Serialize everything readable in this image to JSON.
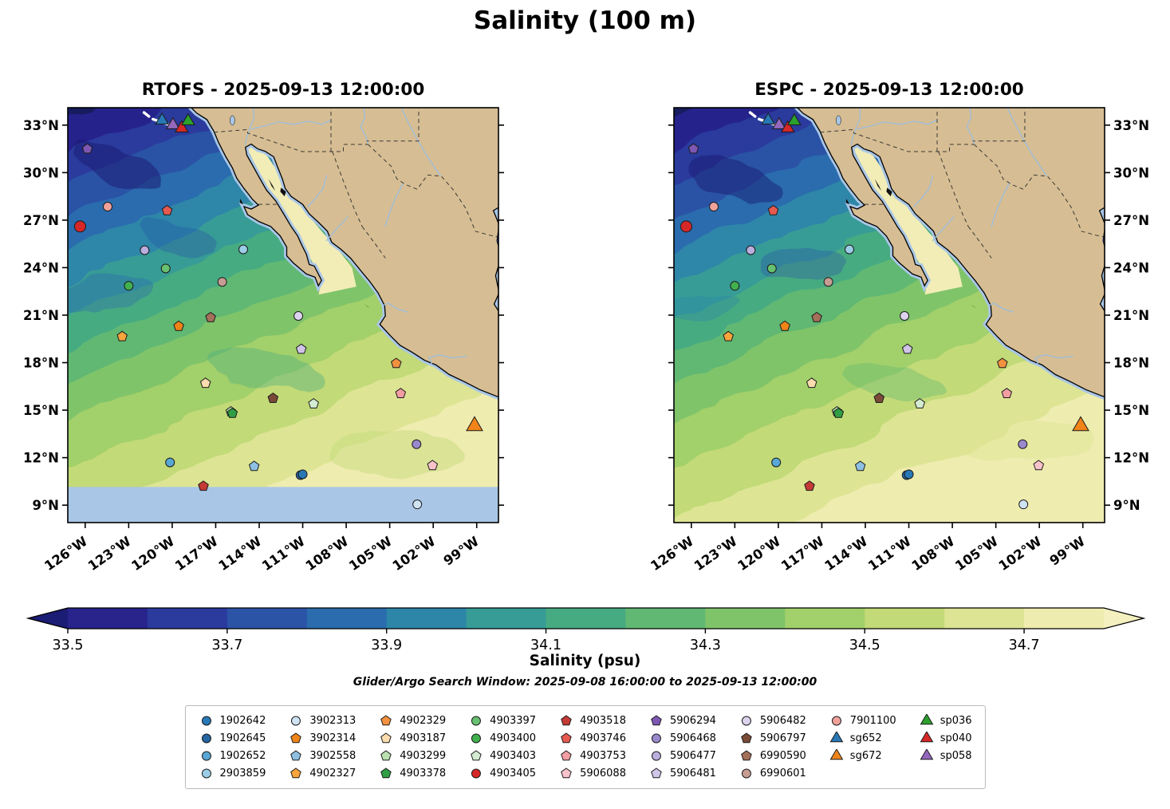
{
  "title": "Salinity (100 m)",
  "subtitle": "Glider/Argo Search Window: 2025-09-08 16:00:00 to 2025-09-13 12:00:00",
  "panels": [
    {
      "model": "RTOFS",
      "title": "RTOFS - 2025-09-13 12:00:00",
      "timestamp": "2025-09-13 12:00:00",
      "has_south_boundary_band": true,
      "turbulence_seed": 3
    },
    {
      "model": "ESPC",
      "title": "ESPC - 2025-09-13 12:00:00",
      "timestamp": "2025-09-13 12:00:00",
      "has_south_boundary_band": false,
      "turbulence_seed": 11
    }
  ],
  "axes": {
    "lat_ticks": [
      9,
      12,
      15,
      18,
      21,
      24,
      27,
      30,
      33
    ],
    "lat_labels": [
      "9°N",
      "12°N",
      "15°N",
      "18°N",
      "21°N",
      "24°N",
      "27°N",
      "30°N",
      "33°N"
    ],
    "lon_ticks": [
      -126,
      -123,
      -120,
      -117,
      -114,
      -111,
      -108,
      -105,
      -102,
      -99
    ],
    "lon_labels": [
      "126°W",
      "123°W",
      "120°W",
      "117°W",
      "114°W",
      "111°W",
      "108°W",
      "105°W",
      "102°W",
      "99°W"
    ]
  },
  "colorbar": {
    "label": "Salinity (psu)",
    "units": "psu",
    "ticks": [
      33.5,
      33.7,
      33.9,
      34.1,
      34.3,
      34.5,
      34.7
    ],
    "tick_labels": [
      "33.5",
      "33.7",
      "33.9",
      "34.1",
      "34.3",
      "34.5",
      "34.7"
    ],
    "vmin": 33.5,
    "vmax": 34.8,
    "segment_step": 0.1,
    "under_color": "#1b1c74",
    "over_color": "#f4f0bf",
    "segment_colors": [
      "#28248c",
      "#2b3a9d",
      "#2b53a6",
      "#2a6cae",
      "#2d86a8",
      "#379c96",
      "#47ab82",
      "#61b873",
      "#80c46a",
      "#a2d06a",
      "#c2da77",
      "#dde594",
      "#efecb0"
    ]
  },
  "basemap_colors": {
    "land": "#d6bd93",
    "coastline": "#000000",
    "no_data_shelf": "#a9c6e6",
    "gulf_of_california_water": "#f2edb6",
    "river": "#9dbede",
    "darkest_ocean": "#141a5e"
  },
  "legend": {
    "columns": [
      [
        {
          "id": "1902642",
          "shape": "circle",
          "color": "#2878b5"
        },
        {
          "id": "1902645",
          "shape": "circle",
          "color": "#2565a0"
        },
        {
          "id": "1902652",
          "shape": "circle",
          "color": "#58a7d4"
        },
        {
          "id": "2903859",
          "shape": "circle",
          "color": "#9ccde6"
        }
      ],
      [
        {
          "id": "3902313",
          "shape": "circle",
          "color": "#cfe3f2"
        },
        {
          "id": "3902314",
          "shape": "pentagon",
          "color": "#f08418"
        },
        {
          "id": "3902558",
          "shape": "pentagon",
          "color": "#8ec0e2"
        },
        {
          "id": "4902327",
          "shape": "pentagon",
          "color": "#faa43c"
        }
      ],
      [
        {
          "id": "4902329",
          "shape": "pentagon",
          "color": "#f29140"
        },
        {
          "id": "4903187",
          "shape": "pentagon",
          "color": "#fbdcae"
        },
        {
          "id": "4903299",
          "shape": "pentagon",
          "color": "#b9e0ae"
        },
        {
          "id": "4903378",
          "shape": "pentagon",
          "color": "#2f9e44"
        }
      ],
      [
        {
          "id": "4903397",
          "shape": "circle",
          "color": "#67c06f"
        },
        {
          "id": "4903400",
          "shape": "circle",
          "color": "#41b14e"
        },
        {
          "id": "4903403",
          "shape": "pentagon",
          "color": "#d4ecd2"
        },
        {
          "id": "4903405",
          "shape": "circle",
          "color": "#d62728"
        }
      ],
      [
        {
          "id": "4903518",
          "shape": "pentagon",
          "color": "#c43a35"
        },
        {
          "id": "4903746",
          "shape": "pentagon",
          "color": "#e65a50"
        },
        {
          "id": "4903753",
          "shape": "pentagon",
          "color": "#f29da2"
        },
        {
          "id": "5906088",
          "shape": "pentagon",
          "color": "#f8c3cb"
        }
      ],
      [
        {
          "id": "5906294",
          "shape": "pentagon",
          "color": "#7e57b2"
        },
        {
          "id": "5906468",
          "shape": "circle",
          "color": "#9a89cc"
        },
        {
          "id": "5906477",
          "shape": "circle",
          "color": "#b9aedd"
        },
        {
          "id": "5906481",
          "shape": "pentagon",
          "color": "#d0c5e8"
        }
      ],
      [
        {
          "id": "5906482",
          "shape": "circle",
          "color": "#ddd3ee"
        },
        {
          "id": "5906797",
          "shape": "pentagon",
          "color": "#7a4a38"
        },
        {
          "id": "6990590",
          "shape": "pentagon",
          "color": "#a4705a"
        },
        {
          "id": "6990601",
          "shape": "circle",
          "color": "#c79c92"
        }
      ],
      [
        {
          "id": "7901100",
          "shape": "circle",
          "color": "#f0a29a"
        },
        {
          "id": "sg652",
          "shape": "triangle",
          "color": "#2878b5"
        },
        {
          "id": "sg672",
          "shape": "triangle",
          "color": "#f08418"
        }
      ],
      [
        {
          "id": "sp036",
          "shape": "triangle",
          "color": "#2ca02c"
        },
        {
          "id": "sp040",
          "shape": "triangle",
          "color": "#d62728"
        },
        {
          "id": "sp058",
          "shape": "triangle",
          "color": "#9467bd"
        }
      ]
    ]
  },
  "chart_data": {
    "type": "heatmap",
    "title": "Salinity (100 m)",
    "variable": "Salinity",
    "units": "psu",
    "depth_m": 100,
    "panels": [
      {
        "model": "RTOFS",
        "timestamp": "2025-09-13 12:00:00"
      },
      {
        "model": "ESPC",
        "timestamp": "2025-09-13 12:00:00"
      }
    ],
    "lon_range_degW": [
      127.2,
      97.5
    ],
    "lat_range_degN": [
      7.9,
      34.1
    ],
    "value_range_psu": [
      33.5,
      34.8
    ],
    "spatial_pattern": "lowest salinity (<33.5 psu, dark indigo) in the northwest offshore California; values increase southeastward to >34.7 psu (pale yellow) near the southern Mexican coast and inside the Gulf of California",
    "glider_track": {
      "name": "glider-track",
      "color": "#ffffff",
      "points": [
        [
          -121.95,
          33.8
        ],
        [
          -121.4,
          33.4
        ],
        [
          -120.8,
          33.2
        ],
        [
          -120.2,
          33.02
        ]
      ]
    },
    "platforms": [
      {
        "id": "5906294",
        "lon": -125.85,
        "lat": 31.5
      },
      {
        "id": "7901100",
        "lon": -124.45,
        "lat": 27.85
      },
      {
        "id": "4903746",
        "lon": -120.35,
        "lat": 27.6
      },
      {
        "id": "4903405",
        "lon": -126.35,
        "lat": 26.6,
        "size": 7
      },
      {
        "id": "5906477",
        "lon": -121.9,
        "lat": 25.1
      },
      {
        "id": "2903859",
        "lon": -115.1,
        "lat": 25.15
      },
      {
        "id": "4903397",
        "lon": -120.45,
        "lat": 23.95
      },
      {
        "id": "4903400",
        "lon": -123.0,
        "lat": 22.85
      },
      {
        "id": "6990601",
        "lon": -116.55,
        "lat": 23.1
      },
      {
        "id": "6990590",
        "lon": -117.35,
        "lat": 20.85
      },
      {
        "id": "5906482",
        "lon": -111.3,
        "lat": 20.95
      },
      {
        "id": "3902314",
        "lon": -119.55,
        "lat": 20.3
      },
      {
        "id": "4902327",
        "lon": -123.45,
        "lat": 19.65
      },
      {
        "id": "5906481",
        "lon": -111.1,
        "lat": 18.85
      },
      {
        "id": "4902329",
        "lon": -104.55,
        "lat": 17.95
      },
      {
        "id": "4903187",
        "lon": -117.7,
        "lat": 16.7
      },
      {
        "id": "5906797",
        "lon": -113.05,
        "lat": 15.75
      },
      {
        "id": "4903753",
        "lon": -104.25,
        "lat": 16.05
      },
      {
        "id": "4903299",
        "lon": -115.95,
        "lat": 14.9
      },
      {
        "id": "4903403",
        "lon": -110.25,
        "lat": 15.4
      },
      {
        "id": "4903378",
        "lon": -115.85,
        "lat": 14.8
      },
      {
        "id": "sg672",
        "lon": -99.15,
        "lat": 14.0,
        "size": 10
      },
      {
        "id": "5906468",
        "lon": -103.15,
        "lat": 12.85
      },
      {
        "id": "1902652",
        "lon": -120.15,
        "lat": 11.7
      },
      {
        "id": "3902558",
        "lon": -114.35,
        "lat": 11.45
      },
      {
        "id": "1902645",
        "lon": -111.15,
        "lat": 10.9
      },
      {
        "id": "1902642",
        "lon": -111.0,
        "lat": 10.95
      },
      {
        "id": "5906088",
        "lon": -102.05,
        "lat": 11.5
      },
      {
        "id": "4903518",
        "lon": -117.85,
        "lat": 10.2
      },
      {
        "id": "3902313",
        "lon": -103.1,
        "lat": 9.05
      },
      {
        "id": "sg652",
        "lon": -120.7,
        "lat": 33.3,
        "size": 8
      },
      {
        "id": "sp058",
        "lon": -119.95,
        "lat": 33.0,
        "size": 8
      },
      {
        "id": "sp040",
        "lon": -119.35,
        "lat": 32.8,
        "size": 8
      },
      {
        "id": "sp036",
        "lon": -118.9,
        "lat": 33.25,
        "size": 8
      }
    ]
  }
}
